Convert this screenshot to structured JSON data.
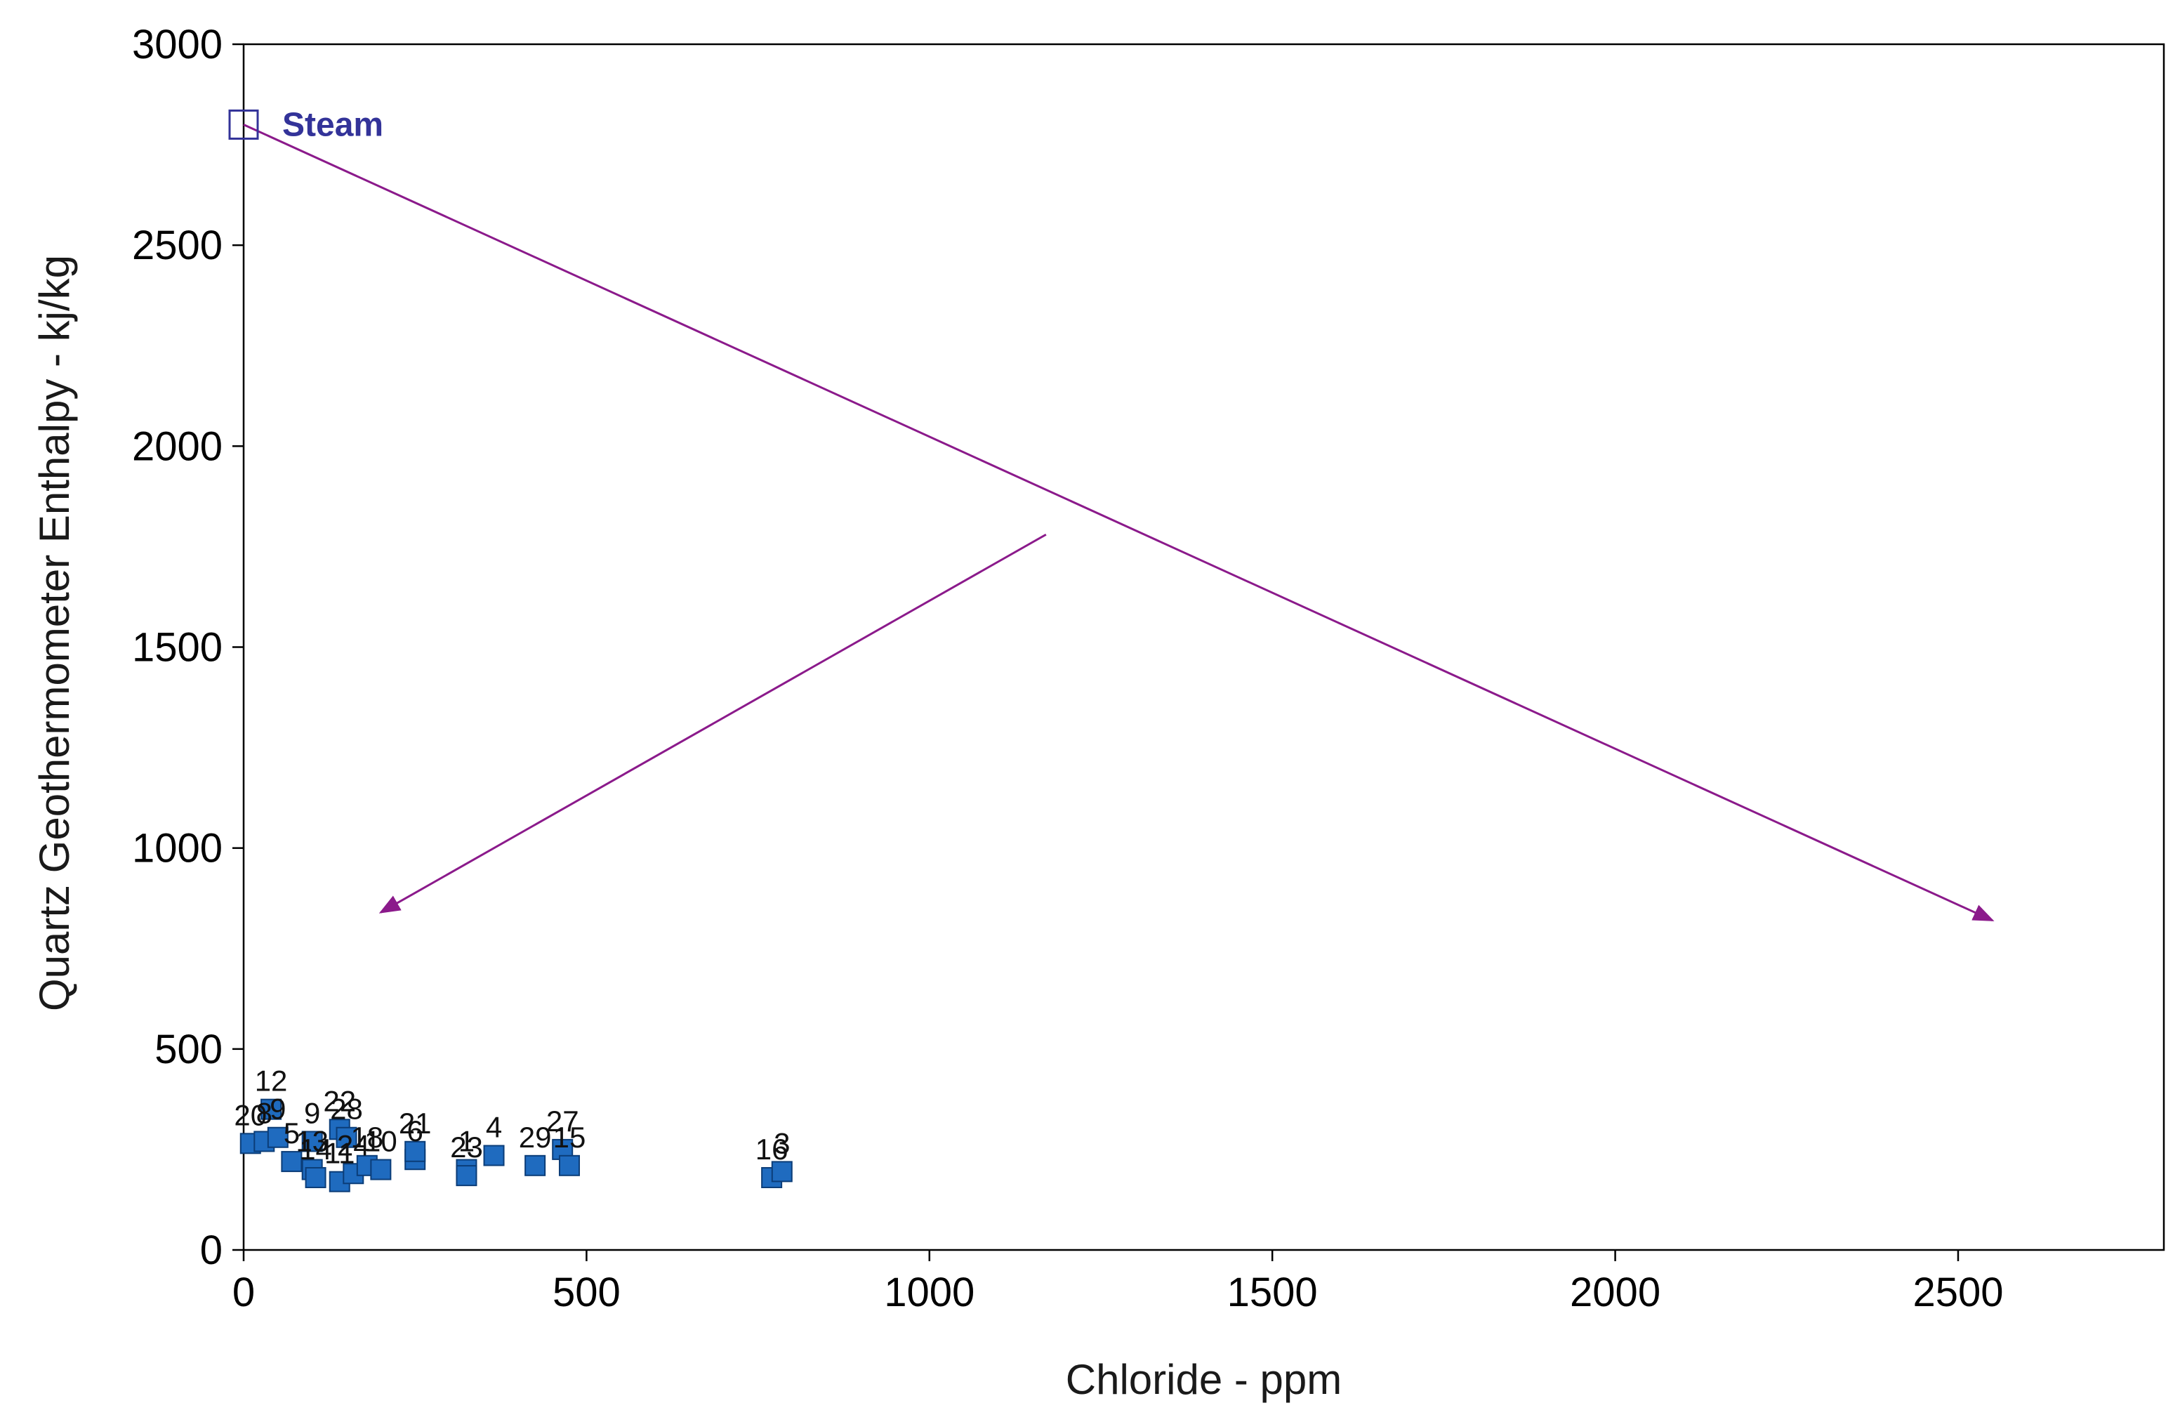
{
  "chart_data": {
    "type": "scatter",
    "title": "",
    "xlabel": "Chloride - ppm",
    "ylabel": "Quartz Geothermometer Enthalpy - kj/kg",
    "xlim": [
      0,
      2800
    ],
    "ylim": [
      0,
      3000
    ],
    "x_ticks": [
      "0",
      "500",
      "1000",
      "1500",
      "2000",
      "2500"
    ],
    "x_tick_values": [
      0,
      500,
      1000,
      1500,
      2000,
      2500
    ],
    "y_ticks": [
      "0",
      "500",
      "1000",
      "1500",
      "2000",
      "2500",
      "3000"
    ],
    "y_tick_values": [
      0,
      500,
      1000,
      1500,
      2000,
      2500,
      3000
    ],
    "grid": false,
    "legend": "none",
    "colors": {
      "points": "#1f6bbf",
      "point_border": "#0b3d78",
      "steam_marker": "#333399",
      "arrows": "#8b1a8b",
      "axis": "#000000"
    },
    "steam": {
      "label": "Steam",
      "x": 0,
      "y": 2800
    },
    "annotations": [
      {
        "type": "arrow",
        "from": [
          0,
          2800
        ],
        "to": [
          2550,
          820
        ]
      },
      {
        "type": "arrow",
        "from": [
          1170,
          1780
        ],
        "to": [
          200,
          840
        ]
      }
    ],
    "series": [
      {
        "points": [
          {
            "label": "12",
            "x": 40,
            "y": 350
          },
          {
            "label": "20",
            "x": 10,
            "y": 265
          },
          {
            "label": "8",
            "x": 30,
            "y": 270
          },
          {
            "label": "9",
            "x": 50,
            "y": 280
          },
          {
            "label": "5",
            "x": 70,
            "y": 220
          },
          {
            "label": "9",
            "x": 100,
            "y": 270
          },
          {
            "label": "13",
            "x": 100,
            "y": 200
          },
          {
            "label": "14",
            "x": 105,
            "y": 180
          },
          {
            "label": "22",
            "x": 140,
            "y": 300
          },
          {
            "label": "28",
            "x": 150,
            "y": 280
          },
          {
            "label": "11",
            "x": 140,
            "y": 170
          },
          {
            "label": "24",
            "x": 160,
            "y": 190
          },
          {
            "label": "18",
            "x": 180,
            "y": 210
          },
          {
            "label": "10",
            "x": 200,
            "y": 200
          },
          {
            "label": "6",
            "x": 250,
            "y": 225
          },
          {
            "label": "21",
            "x": 250,
            "y": 245
          },
          {
            "label": "1",
            "x": 325,
            "y": 200
          },
          {
            "label": "23",
            "x": 325,
            "y": 185
          },
          {
            "label": "4",
            "x": 365,
            "y": 235
          },
          {
            "label": "29",
            "x": 425,
            "y": 210
          },
          {
            "label": "27",
            "x": 465,
            "y": 250
          },
          {
            "label": "15",
            "x": 475,
            "y": 210
          },
          {
            "label": "16",
            "x": 770,
            "y": 180
          },
          {
            "label": "3",
            "x": 785,
            "y": 195
          }
        ]
      }
    ]
  }
}
